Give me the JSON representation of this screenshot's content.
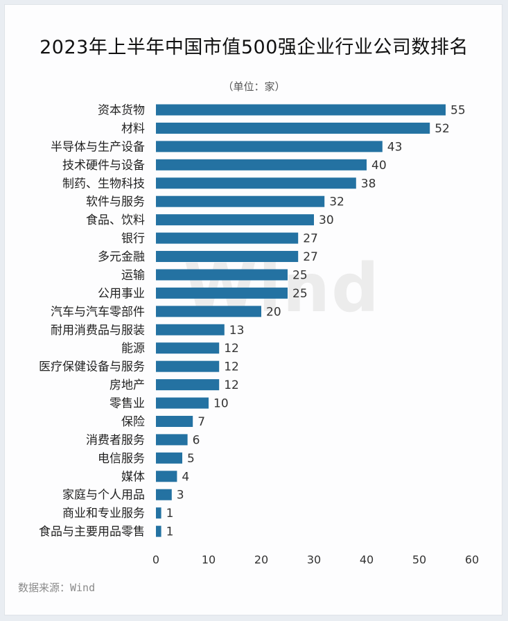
{
  "title": "2023年上半年中国市值500强企业行业公司数排名",
  "unit_label": "（单位：家）",
  "watermark": "Wind",
  "source": "数据来源：Wind",
  "colors": {
    "bar": "#2472a2",
    "background": "#fdfdfe"
  },
  "chart_data": {
    "type": "bar",
    "orientation": "horizontal",
    "title": "2023年上半年中国市值500强企业行业公司数排名",
    "unit": "（单位：家）",
    "categories": [
      "资本货物",
      "材料",
      "半导体与生产设备",
      "技术硬件与设备",
      "制药、生物科技",
      "软件与服务",
      "食品、饮料",
      "银行",
      "多元金融",
      "运输",
      "公用事业",
      "汽车与汽车零部件",
      "耐用消费品与服装",
      "能源",
      "医疗保健设备与服务",
      "房地产",
      "零售业",
      "保险",
      "消费者服务",
      "电信服务",
      "媒体",
      "家庭与个人用品",
      "商业和专业服务",
      "食品与主要用品零售"
    ],
    "values": [
      55,
      52,
      43,
      40,
      38,
      32,
      30,
      27,
      27,
      25,
      25,
      20,
      13,
      12,
      12,
      12,
      10,
      7,
      6,
      5,
      4,
      3,
      1,
      1
    ],
    "xlim": [
      0,
      60
    ],
    "xticks": [
      0,
      10,
      20,
      30,
      40,
      50,
      60
    ],
    "grid": false,
    "legend": "none"
  }
}
